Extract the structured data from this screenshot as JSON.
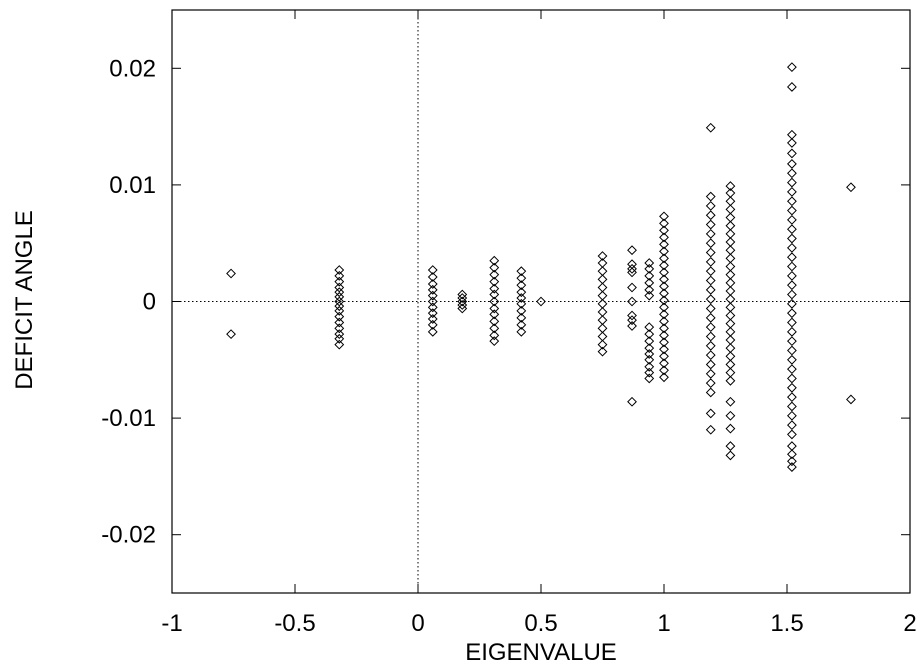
{
  "chart_data": {
    "type": "scatter",
    "title": "",
    "xlabel": "EIGENVALUE",
    "ylabel": "DEFICIT ANGLE",
    "xlim": [
      -1,
      2
    ],
    "ylim": [
      -0.025,
      0.025
    ],
    "x_ticks": [
      -1,
      -0.5,
      0,
      0.5,
      1,
      1.5,
      2
    ],
    "x_tick_labels": [
      "-1",
      "-0.5",
      "0",
      "0.5",
      "1",
      "1.5",
      "2"
    ],
    "y_ticks": [
      -0.02,
      -0.01,
      0,
      0.01,
      0.02
    ],
    "y_tick_labels": [
      "-0.02",
      "-0.01",
      "0",
      "0.01",
      "0.02"
    ],
    "marker": "diamond",
    "marker_color": "#000000",
    "reference_lines": [
      {
        "axis": "x",
        "value": 0,
        "style": "dotted"
      },
      {
        "axis": "y",
        "value": 0,
        "style": "dotted"
      }
    ],
    "grid": false,
    "legend": "none",
    "series": [
      {
        "points": [
          {
            "x": -0.76,
            "y": 0.0024
          },
          {
            "x": -0.76,
            "y": -0.0028
          },
          {
            "x": -0.32,
            "y": 0.0027
          },
          {
            "x": -0.32,
            "y": 0.0022
          },
          {
            "x": -0.32,
            "y": 0.0017
          },
          {
            "x": -0.32,
            "y": 0.0012
          },
          {
            "x": -0.32,
            "y": 0.0008
          },
          {
            "x": -0.32,
            "y": 0.0004
          },
          {
            "x": -0.32,
            "y": 0.0
          },
          {
            "x": -0.32,
            "y": -0.0004
          },
          {
            "x": -0.32,
            "y": -0.0008
          },
          {
            "x": -0.32,
            "y": -0.0013
          },
          {
            "x": -0.32,
            "y": -0.0018
          },
          {
            "x": -0.32,
            "y": -0.0023
          },
          {
            "x": -0.32,
            "y": -0.0028
          },
          {
            "x": -0.32,
            "y": -0.0032
          },
          {
            "x": -0.32,
            "y": -0.0037
          },
          {
            "x": 0.06,
            "y": 0.0027
          },
          {
            "x": 0.06,
            "y": 0.0021
          },
          {
            "x": 0.06,
            "y": 0.0015
          },
          {
            "x": 0.06,
            "y": 0.001
          },
          {
            "x": 0.06,
            "y": 0.0005
          },
          {
            "x": 0.06,
            "y": 0.0
          },
          {
            "x": 0.06,
            "y": -0.0005
          },
          {
            "x": 0.06,
            "y": -0.001
          },
          {
            "x": 0.06,
            "y": -0.0015
          },
          {
            "x": 0.06,
            "y": -0.002
          },
          {
            "x": 0.06,
            "y": -0.0026
          },
          {
            "x": 0.18,
            "y": 0.0006
          },
          {
            "x": 0.18,
            "y": 0.0003
          },
          {
            "x": 0.18,
            "y": 0.0
          },
          {
            "x": 0.18,
            "y": -0.0003
          },
          {
            "x": 0.18,
            "y": -0.0006
          },
          {
            "x": 0.31,
            "y": 0.0035
          },
          {
            "x": 0.31,
            "y": 0.0029
          },
          {
            "x": 0.31,
            "y": 0.0023
          },
          {
            "x": 0.31,
            "y": 0.0017
          },
          {
            "x": 0.31,
            "y": 0.0011
          },
          {
            "x": 0.31,
            "y": 0.0006
          },
          {
            "x": 0.31,
            "y": 0.0
          },
          {
            "x": 0.31,
            "y": -0.0006
          },
          {
            "x": 0.31,
            "y": -0.0011
          },
          {
            "x": 0.31,
            "y": -0.0017
          },
          {
            "x": 0.31,
            "y": -0.0023
          },
          {
            "x": 0.31,
            "y": -0.0029
          },
          {
            "x": 0.31,
            "y": -0.0034
          },
          {
            "x": 0.42,
            "y": 0.0026
          },
          {
            "x": 0.42,
            "y": 0.002
          },
          {
            "x": 0.42,
            "y": 0.0014
          },
          {
            "x": 0.42,
            "y": 0.0008
          },
          {
            "x": 0.42,
            "y": 0.0003
          },
          {
            "x": 0.42,
            "y": -0.0002
          },
          {
            "x": 0.42,
            "y": -0.0008
          },
          {
            "x": 0.42,
            "y": -0.0014
          },
          {
            "x": 0.42,
            "y": -0.002
          },
          {
            "x": 0.42,
            "y": -0.0026
          },
          {
            "x": 0.5,
            "y": 0.0
          },
          {
            "x": 0.75,
            "y": 0.0039
          },
          {
            "x": 0.75,
            "y": 0.0033
          },
          {
            "x": 0.75,
            "y": 0.0026
          },
          {
            "x": 0.75,
            "y": 0.0019
          },
          {
            "x": 0.75,
            "y": 0.0012
          },
          {
            "x": 0.75,
            "y": 0.0005
          },
          {
            "x": 0.75,
            "y": -0.0002
          },
          {
            "x": 0.75,
            "y": -0.0009
          },
          {
            "x": 0.75,
            "y": -0.0016
          },
          {
            "x": 0.75,
            "y": -0.0023
          },
          {
            "x": 0.75,
            "y": -0.003
          },
          {
            "x": 0.75,
            "y": -0.0037
          },
          {
            "x": 0.75,
            "y": -0.0043
          },
          {
            "x": 0.87,
            "y": 0.0044
          },
          {
            "x": 0.87,
            "y": 0.0032
          },
          {
            "x": 0.87,
            "y": 0.0028
          },
          {
            "x": 0.87,
            "y": 0.0025
          },
          {
            "x": 0.87,
            "y": 0.0012
          },
          {
            "x": 0.87,
            "y": 0.0
          },
          {
            "x": 0.87,
            "y": -0.0012
          },
          {
            "x": 0.87,
            "y": -0.0016
          },
          {
            "x": 0.87,
            "y": -0.0021
          },
          {
            "x": 0.87,
            "y": -0.0086
          },
          {
            "x": 0.94,
            "y": 0.0033
          },
          {
            "x": 0.94,
            "y": 0.0028
          },
          {
            "x": 0.94,
            "y": 0.0022
          },
          {
            "x": 0.94,
            "y": 0.0016
          },
          {
            "x": 0.94,
            "y": 0.001
          },
          {
            "x": 0.94,
            "y": 0.0005
          },
          {
            "x": 0.94,
            "y": -0.0022
          },
          {
            "x": 0.94,
            "y": -0.0028
          },
          {
            "x": 0.94,
            "y": -0.0034
          },
          {
            "x": 0.94,
            "y": -0.004
          },
          {
            "x": 0.94,
            "y": -0.0045
          },
          {
            "x": 0.94,
            "y": -0.005
          },
          {
            "x": 0.94,
            "y": -0.0056
          },
          {
            "x": 0.94,
            "y": -0.0061
          },
          {
            "x": 0.94,
            "y": -0.0066
          },
          {
            "x": 1.0,
            "y": 0.0073
          },
          {
            "x": 1.0,
            "y": 0.0067
          },
          {
            "x": 1.0,
            "y": 0.0061
          },
          {
            "x": 1.0,
            "y": 0.0055
          },
          {
            "x": 1.0,
            "y": 0.0049
          },
          {
            "x": 1.0,
            "y": 0.0043
          },
          {
            "x": 1.0,
            "y": 0.0037
          },
          {
            "x": 1.0,
            "y": 0.0031
          },
          {
            "x": 1.0,
            "y": 0.0025
          },
          {
            "x": 1.0,
            "y": 0.0019
          },
          {
            "x": 1.0,
            "y": 0.0013
          },
          {
            "x": 1.0,
            "y": 0.0007
          },
          {
            "x": 1.0,
            "y": 0.0001
          },
          {
            "x": 1.0,
            "y": -0.0005
          },
          {
            "x": 1.0,
            "y": -0.0011
          },
          {
            "x": 1.0,
            "y": -0.0017
          },
          {
            "x": 1.0,
            "y": -0.0023
          },
          {
            "x": 1.0,
            "y": -0.0029
          },
          {
            "x": 1.0,
            "y": -0.0035
          },
          {
            "x": 1.0,
            "y": -0.0041
          },
          {
            "x": 1.0,
            "y": -0.0047
          },
          {
            "x": 1.0,
            "y": -0.0053
          },
          {
            "x": 1.0,
            "y": -0.0059
          },
          {
            "x": 1.0,
            "y": -0.0065
          },
          {
            "x": 1.19,
            "y": 0.0149
          },
          {
            "x": 1.19,
            "y": 0.009
          },
          {
            "x": 1.19,
            "y": 0.0082
          },
          {
            "x": 1.19,
            "y": 0.0074
          },
          {
            "x": 1.19,
            "y": 0.0066
          },
          {
            "x": 1.19,
            "y": 0.0058
          },
          {
            "x": 1.19,
            "y": 0.005
          },
          {
            "x": 1.19,
            "y": 0.0042
          },
          {
            "x": 1.19,
            "y": 0.0034
          },
          {
            "x": 1.19,
            "y": 0.0026
          },
          {
            "x": 1.19,
            "y": 0.0018
          },
          {
            "x": 1.19,
            "y": 0.001
          },
          {
            "x": 1.19,
            "y": 0.0002
          },
          {
            "x": 1.19,
            "y": -0.0006
          },
          {
            "x": 1.19,
            "y": -0.0014
          },
          {
            "x": 1.19,
            "y": -0.0022
          },
          {
            "x": 1.19,
            "y": -0.003
          },
          {
            "x": 1.19,
            "y": -0.0038
          },
          {
            "x": 1.19,
            "y": -0.0046
          },
          {
            "x": 1.19,
            "y": -0.0054
          },
          {
            "x": 1.19,
            "y": -0.0062
          },
          {
            "x": 1.19,
            "y": -0.007
          },
          {
            "x": 1.19,
            "y": -0.0078
          },
          {
            "x": 1.19,
            "y": -0.0096
          },
          {
            "x": 1.19,
            "y": -0.011
          },
          {
            "x": 1.27,
            "y": 0.0099
          },
          {
            "x": 1.27,
            "y": 0.0093
          },
          {
            "x": 1.27,
            "y": 0.0086
          },
          {
            "x": 1.27,
            "y": 0.0079
          },
          {
            "x": 1.27,
            "y": 0.0072
          },
          {
            "x": 1.27,
            "y": 0.0065
          },
          {
            "x": 1.27,
            "y": 0.0058
          },
          {
            "x": 1.27,
            "y": 0.0051
          },
          {
            "x": 1.27,
            "y": 0.0044
          },
          {
            "x": 1.27,
            "y": 0.0037
          },
          {
            "x": 1.27,
            "y": 0.003
          },
          {
            "x": 1.27,
            "y": 0.0023
          },
          {
            "x": 1.27,
            "y": 0.0016
          },
          {
            "x": 1.27,
            "y": 0.0009
          },
          {
            "x": 1.27,
            "y": 0.0002
          },
          {
            "x": 1.27,
            "y": -0.0005
          },
          {
            "x": 1.27,
            "y": -0.0012
          },
          {
            "x": 1.27,
            "y": -0.0019
          },
          {
            "x": 1.27,
            "y": -0.0026
          },
          {
            "x": 1.27,
            "y": -0.0033
          },
          {
            "x": 1.27,
            "y": -0.004
          },
          {
            "x": 1.27,
            "y": -0.0047
          },
          {
            "x": 1.27,
            "y": -0.0054
          },
          {
            "x": 1.27,
            "y": -0.0061
          },
          {
            "x": 1.27,
            "y": -0.0068
          },
          {
            "x": 1.27,
            "y": -0.0086
          },
          {
            "x": 1.27,
            "y": -0.0098
          },
          {
            "x": 1.27,
            "y": -0.0109
          },
          {
            "x": 1.27,
            "y": -0.0124
          },
          {
            "x": 1.27,
            "y": -0.0132
          },
          {
            "x": 1.52,
            "y": 0.0201
          },
          {
            "x": 1.52,
            "y": 0.0184
          },
          {
            "x": 1.52,
            "y": 0.0143
          },
          {
            "x": 1.52,
            "y": 0.0136
          },
          {
            "x": 1.52,
            "y": 0.0127
          },
          {
            "x": 1.52,
            "y": 0.0118
          },
          {
            "x": 1.52,
            "y": 0.011
          },
          {
            "x": 1.52,
            "y": 0.0102
          },
          {
            "x": 1.52,
            "y": 0.0094
          },
          {
            "x": 1.52,
            "y": 0.0086
          },
          {
            "x": 1.52,
            "y": 0.0078
          },
          {
            "x": 1.52,
            "y": 0.007
          },
          {
            "x": 1.52,
            "y": 0.0062
          },
          {
            "x": 1.52,
            "y": 0.0054
          },
          {
            "x": 1.52,
            "y": 0.0046
          },
          {
            "x": 1.52,
            "y": 0.0038
          },
          {
            "x": 1.52,
            "y": 0.003
          },
          {
            "x": 1.52,
            "y": 0.0022
          },
          {
            "x": 1.52,
            "y": 0.0014
          },
          {
            "x": 1.52,
            "y": 0.0006
          },
          {
            "x": 1.52,
            "y": -0.0002
          },
          {
            "x": 1.52,
            "y": -0.001
          },
          {
            "x": 1.52,
            "y": -0.0018
          },
          {
            "x": 1.52,
            "y": -0.0026
          },
          {
            "x": 1.52,
            "y": -0.0034
          },
          {
            "x": 1.52,
            "y": -0.0042
          },
          {
            "x": 1.52,
            "y": -0.005
          },
          {
            "x": 1.52,
            "y": -0.0058
          },
          {
            "x": 1.52,
            "y": -0.0066
          },
          {
            "x": 1.52,
            "y": -0.0074
          },
          {
            "x": 1.52,
            "y": -0.0082
          },
          {
            "x": 1.52,
            "y": -0.009
          },
          {
            "x": 1.52,
            "y": -0.0098
          },
          {
            "x": 1.52,
            "y": -0.0106
          },
          {
            "x": 1.52,
            "y": -0.0114
          },
          {
            "x": 1.52,
            "y": -0.0124
          },
          {
            "x": 1.52,
            "y": -0.0131
          },
          {
            "x": 1.52,
            "y": -0.0137
          },
          {
            "x": 1.52,
            "y": -0.0142
          },
          {
            "x": 1.76,
            "y": 0.0098
          },
          {
            "x": 1.76,
            "y": -0.0084
          }
        ]
      }
    ]
  }
}
